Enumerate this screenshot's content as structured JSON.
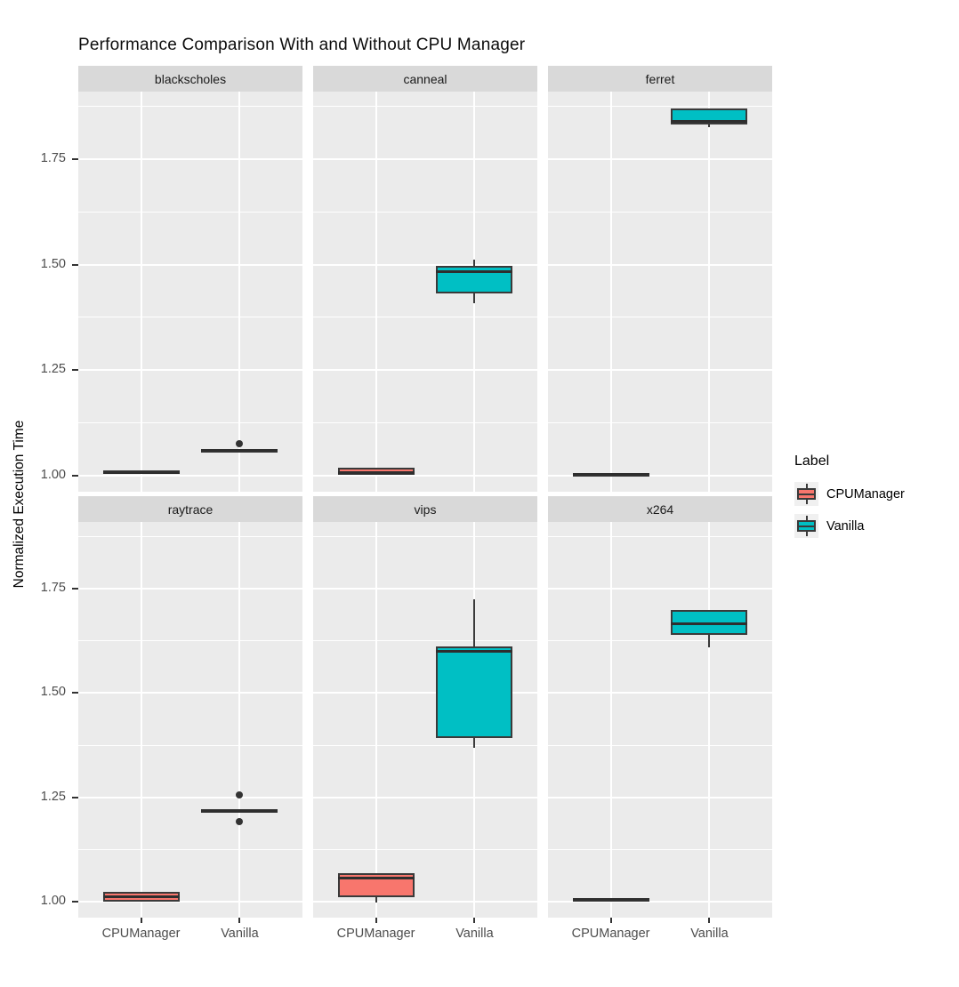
{
  "title": "Performance Comparison With and Without CPU Manager",
  "axes": {
    "y_label": "Normalized Execution Time",
    "y_tick_labels": [
      "1.00",
      "1.25",
      "1.50",
      "1.75"
    ],
    "x_categories": [
      "CPUManager",
      "Vanilla"
    ]
  },
  "legend": {
    "title": "Label",
    "entries": [
      {
        "label": "CPUManager",
        "color": "#F8766D"
      },
      {
        "label": "Vanilla",
        "color": "#00BFC4"
      }
    ]
  },
  "style": {
    "panel_bg": "#EBEBEB",
    "strip_bg": "#D9D9D9",
    "strip_text": "#1A1A1A",
    "grid_color": "#FFFFFF",
    "box_outline": "#3A3A3A",
    "median_color": "#2E2E2E",
    "outlier_color": "#333333",
    "axis_text_color": "#4D4D4D",
    "tick_mark_color": "#333333",
    "salmon": "#F8766D",
    "teal": "#00BFC4"
  },
  "chart_data": {
    "type": "boxplot",
    "title": "Performance Comparison With and Without CPU Manager",
    "ylabel": "Normalized Execution Time",
    "facet_grid": {
      "rows": 2,
      "cols": 3
    },
    "y_range": [
      0.962,
      1.91
    ],
    "y_major_ticks": [
      1.0,
      1.25,
      1.5,
      1.75
    ],
    "y_minor_ticks": [
      1.125,
      1.375,
      1.625,
      1.875
    ],
    "groups": [
      "CPUManager",
      "Vanilla"
    ],
    "legend_position": "right",
    "facets": [
      {
        "name": "blackscholes",
        "boxes": [
          {
            "group": "CPUManager",
            "color": "#F8766D",
            "whisker_low": 1.004,
            "q1": 1.004,
            "median": 1.008,
            "q3": 1.012,
            "whisker_high": 1.012,
            "outliers": []
          },
          {
            "group": "Vanilla",
            "color": "#00BFC4",
            "whisker_low": 1.056,
            "q1": 1.056,
            "median": 1.06,
            "q3": 1.064,
            "whisker_high": 1.064,
            "outliers": [
              1.075
            ]
          }
        ]
      },
      {
        "name": "canneal",
        "boxes": [
          {
            "group": "CPUManager",
            "color": "#F8766D",
            "whisker_low": 1.003,
            "q1": 1.003,
            "median": 1.007,
            "q3": 1.018,
            "whisker_high": 1.018,
            "outliers": []
          },
          {
            "group": "Vanilla",
            "color": "#00BFC4",
            "whisker_low": 1.408,
            "q1": 1.432,
            "median": 1.484,
            "q3": 1.497,
            "whisker_high": 1.511,
            "outliers": []
          }
        ]
      },
      {
        "name": "ferret",
        "boxes": [
          {
            "group": "CPUManager",
            "color": "#F8766D",
            "whisker_low": 1.0,
            "q1": 1.0,
            "median": 1.003,
            "q3": 1.006,
            "whisker_high": 1.006,
            "outliers": []
          },
          {
            "group": "Vanilla",
            "color": "#00BFC4",
            "whisker_low": 1.826,
            "q1": 1.833,
            "median": 1.839,
            "q3": 1.871,
            "whisker_high": 1.871,
            "outliers": []
          }
        ]
      },
      {
        "name": "raytrace",
        "boxes": [
          {
            "group": "CPUManager",
            "color": "#F8766D",
            "whisker_low": 1.001,
            "q1": 1.001,
            "median": 1.011,
            "q3": 1.024,
            "whisker_high": 1.024,
            "outliers": []
          },
          {
            "group": "Vanilla",
            "color": "#00BFC4",
            "whisker_low": 1.214,
            "q1": 1.214,
            "median": 1.217,
            "q3": 1.221,
            "whisker_high": 1.221,
            "outliers": [
              1.255,
              1.192
            ]
          }
        ]
      },
      {
        "name": "vips",
        "boxes": [
          {
            "group": "CPUManager",
            "color": "#F8766D",
            "whisker_low": 0.998,
            "q1": 1.012,
            "median": 1.057,
            "q3": 1.068,
            "whisker_high": 1.068,
            "outliers": []
          },
          {
            "group": "Vanilla",
            "color": "#00BFC4",
            "whisker_low": 1.368,
            "q1": 1.393,
            "median": 1.601,
            "q3": 1.612,
            "whisker_high": 1.724,
            "outliers": []
          }
        ]
      },
      {
        "name": "x264",
        "boxes": [
          {
            "group": "CPUManager",
            "color": "#F8766D",
            "whisker_low": 1.002,
            "q1": 1.002,
            "median": 1.006,
            "q3": 1.009,
            "whisker_high": 1.009,
            "outliers": []
          },
          {
            "group": "Vanilla",
            "color": "#00BFC4",
            "whisker_low": 1.609,
            "q1": 1.639,
            "median": 1.666,
            "q3": 1.699,
            "whisker_high": 1.699,
            "outliers": []
          }
        ]
      }
    ]
  }
}
